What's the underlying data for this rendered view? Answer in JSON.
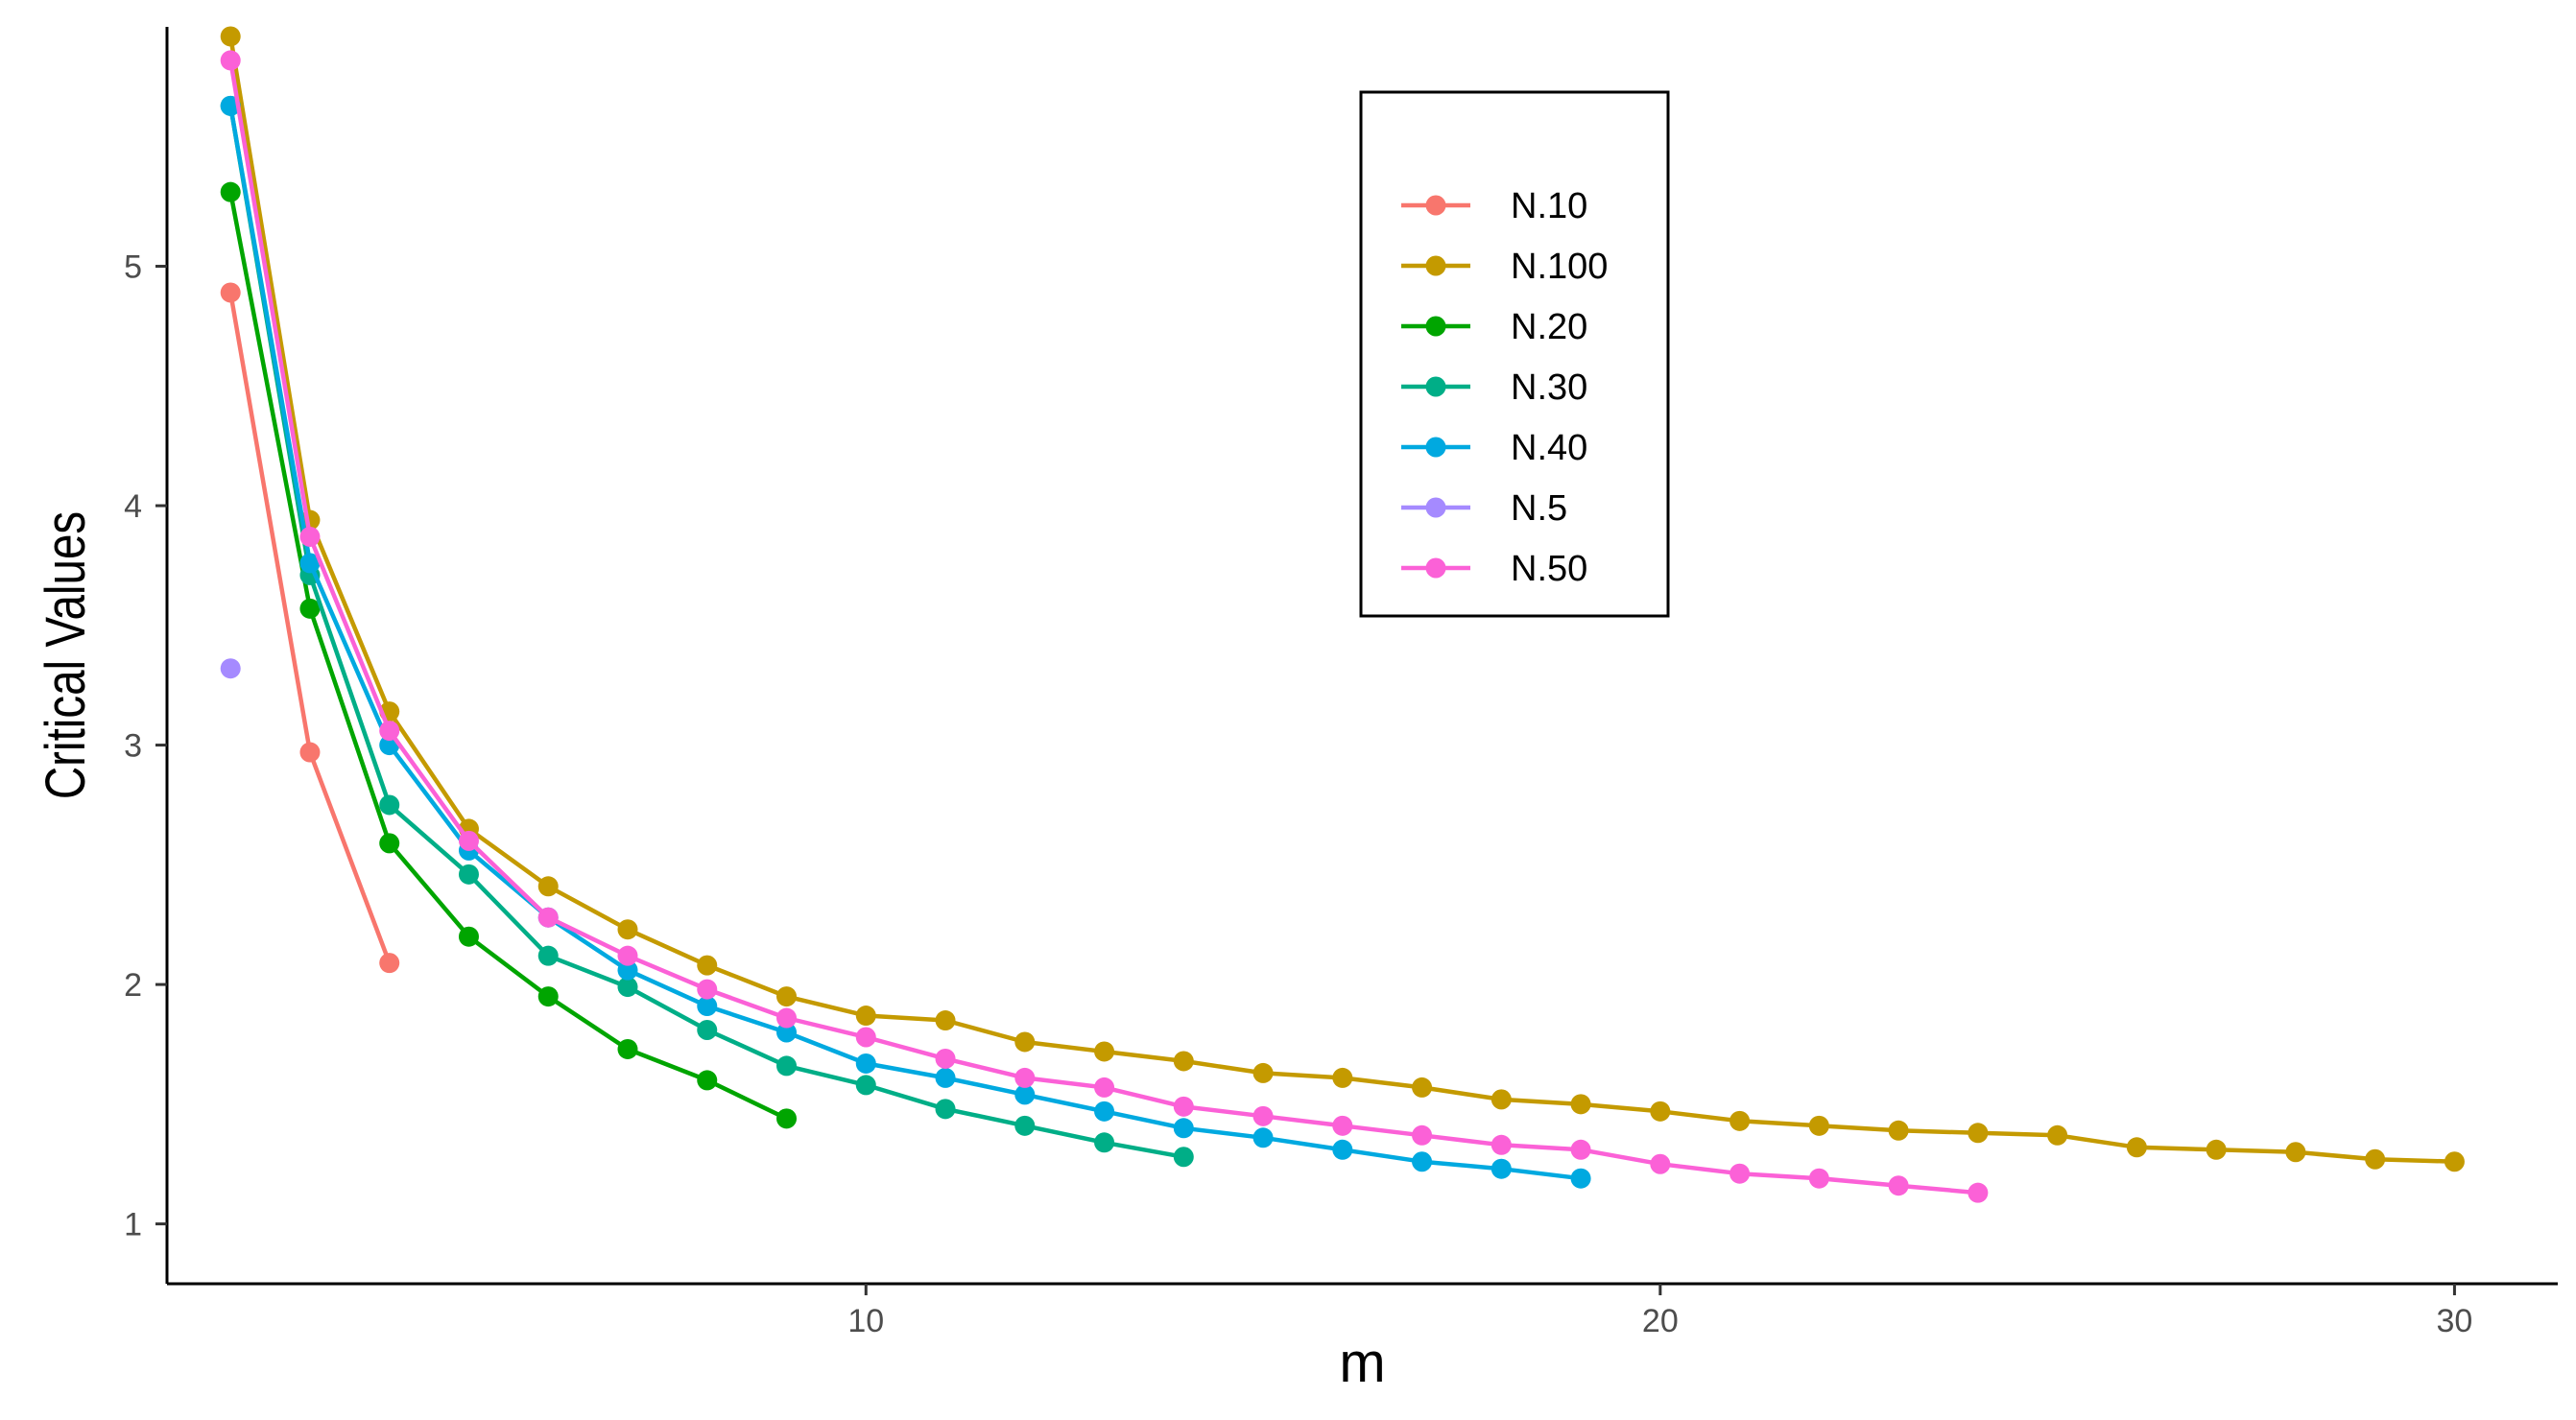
{
  "chart_data": {
    "type": "line",
    "title": "",
    "xlabel": "m",
    "ylabel": "Critical Values",
    "xlim": [
      1.2,
      31.3
    ],
    "ylim": [
      0.75,
      6.0
    ],
    "x_ticks": [
      10,
      20,
      30
    ],
    "y_ticks": [
      1,
      2,
      3,
      4,
      5
    ],
    "grid": false,
    "legend_position": "top-center",
    "series": [
      {
        "name": "N.10",
        "color": "#F8766D",
        "x": [
          2,
          3,
          4
        ],
        "y": [
          4.89,
          2.97,
          2.09
        ]
      },
      {
        "name": "N.100",
        "color": "#C49A00",
        "x": [
          2,
          3,
          4,
          5,
          6,
          7,
          8,
          9,
          10,
          11,
          12,
          13,
          14,
          15,
          16,
          17,
          18,
          19,
          20,
          21,
          22,
          23,
          24,
          25,
          26,
          27,
          28,
          29,
          30
        ],
        "y": [
          5.96,
          3.94,
          3.14,
          2.65,
          2.41,
          2.23,
          2.08,
          1.95,
          1.87,
          1.85,
          1.76,
          1.72,
          1.68,
          1.63,
          1.61,
          1.57,
          1.52,
          1.5,
          1.47,
          1.43,
          1.41,
          1.39,
          1.38,
          1.37,
          1.32,
          1.31,
          1.3,
          1.27,
          1.26
        ]
      },
      {
        "name": "N.20",
        "color": "#00A500",
        "x": [
          2,
          3,
          4,
          5,
          6,
          7,
          8,
          9
        ],
        "y": [
          5.31,
          3.57,
          2.59,
          2.2,
          1.95,
          1.73,
          1.6,
          1.44
        ]
      },
      {
        "name": "N.30",
        "color": "#00AE87",
        "x": [
          2,
          3,
          4,
          5,
          6,
          7,
          8,
          9,
          10,
          11,
          12,
          13,
          14
        ],
        "y": [
          5.67,
          3.71,
          2.75,
          2.46,
          2.12,
          1.99,
          1.81,
          1.66,
          1.58,
          1.48,
          1.41,
          1.34,
          1.28
        ]
      },
      {
        "name": "N.40",
        "color": "#00A9E0",
        "x": [
          2,
          3,
          4,
          5,
          6,
          7,
          8,
          9,
          10,
          11,
          12,
          13,
          14,
          15,
          16,
          17,
          18,
          19
        ],
        "y": [
          5.67,
          3.76,
          3.0,
          2.56,
          2.28,
          2.06,
          1.91,
          1.8,
          1.67,
          1.61,
          1.54,
          1.47,
          1.4,
          1.36,
          1.31,
          1.26,
          1.23,
          1.19
        ]
      },
      {
        "name": "N.5",
        "color": "#A58AFF",
        "x": [
          2
        ],
        "y": [
          3.32
        ]
      },
      {
        "name": "N.50",
        "color": "#FB61D7",
        "x": [
          2,
          3,
          4,
          5,
          6,
          7,
          8,
          9,
          10,
          11,
          12,
          13,
          14,
          15,
          16,
          17,
          18,
          19,
          20,
          21,
          22,
          23,
          24
        ],
        "y": [
          5.86,
          3.87,
          3.06,
          2.6,
          2.28,
          2.12,
          1.98,
          1.86,
          1.78,
          1.69,
          1.61,
          1.57,
          1.49,
          1.45,
          1.41,
          1.37,
          1.33,
          1.31,
          1.25,
          1.21,
          1.19,
          1.16,
          1.13
        ]
      }
    ]
  }
}
